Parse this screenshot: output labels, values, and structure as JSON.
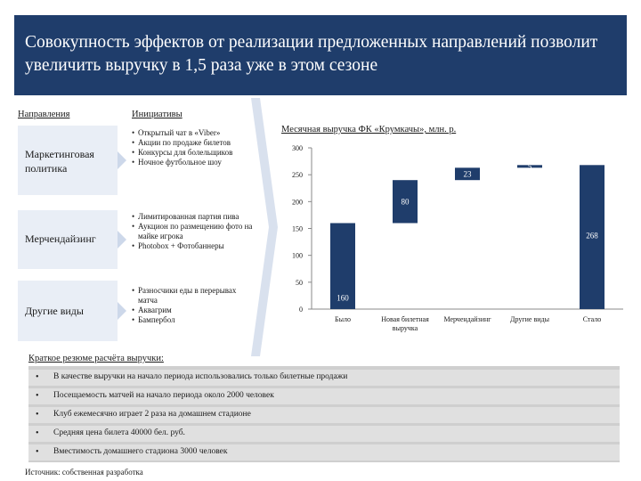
{
  "header": {
    "title": "Совокупность эффектов от реализации предложенных направлений позволит увеличить выручку в 1,5 раза уже в этом сезоне"
  },
  "columns": {
    "directions": "Направления",
    "initiatives": "Инициативы"
  },
  "directions": [
    {
      "label": "Маркетинговая политика",
      "initiatives": [
        "Открытый чат в «Viber»",
        "Акции по продаже билетов",
        "Конкурсы для болельщиков",
        "Ночное футбольное шоу"
      ]
    },
    {
      "label": "Мерчендайзинг",
      "initiatives": [
        "Лимитированная партия пива",
        "Аукцион по размещению фото на майке игрока",
        "Photobox + Фотобаннеры"
      ]
    },
    {
      "label": "Другие виды",
      "initiatives": [
        "Разносчики еды в перерывах матча",
        "Аквагрим",
        "Бампербол"
      ]
    }
  ],
  "chart_data": {
    "type": "waterfall",
    "title": "Месячная выручка ФК «Крумкачы», млн. р.",
    "ylim": [
      0,
      300
    ],
    "yticks": [
      0,
      50,
      100,
      150,
      200,
      250,
      300
    ],
    "grid": false,
    "colors": {
      "bar": "#1f3d6b",
      "axis": "#888888"
    },
    "steps": [
      {
        "category": "Было",
        "value": 160,
        "kind": "total"
      },
      {
        "category": "Новая билетная выручка",
        "value": 80,
        "kind": "increment"
      },
      {
        "category": "Мерчендайзинг",
        "value": 23,
        "kind": "increment"
      },
      {
        "category": "Другие виды",
        "value": 5,
        "kind": "increment"
      },
      {
        "category": "Стало",
        "value": 268,
        "kind": "total"
      }
    ]
  },
  "summary": {
    "title": "Краткое резюме расчёта выручки:",
    "items": [
      "В качестве выручки на начало периода использовались только билетные продажи",
      "Посещаемость матчей на начало периода около 2000 человек",
      "Клуб ежемесячно играет 2 раза на домашнем стадионе",
      "Средняя цена билета 40000 бел. руб.",
      "Вместимость домашнего стадиона 3000 человек"
    ]
  },
  "source": "Источник: собственная разработка"
}
